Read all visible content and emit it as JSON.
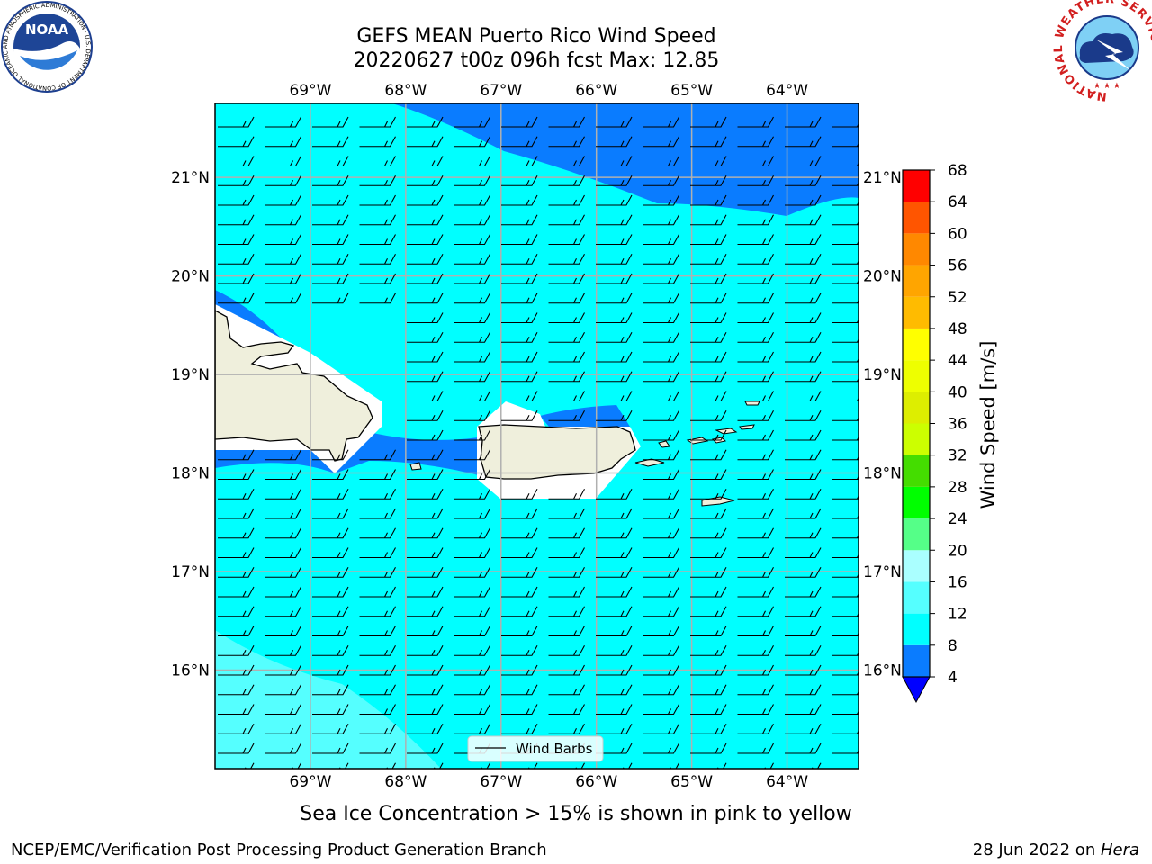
{
  "title": {
    "line1": "GEFS MEAN Puerto Rico Wind Speed",
    "line2": "20220627 t00z 096h fcst   Max: 12.85"
  },
  "logos": {
    "noaa_text": "NOAA",
    "noaa_ring_text": "NATIONAL OCEANIC AND ATMOSPHERIC ADMINISTRATION · U.S. DEPARTMENT OF COMMERCE",
    "nws_ring_text": "NATIONAL WEATHER SERVICE"
  },
  "map": {
    "lon_range": [
      -70.0,
      -63.25
    ],
    "lat_range": [
      15.0,
      21.75
    ],
    "lon_ticks": [
      {
        "value": -69,
        "label": "69°W"
      },
      {
        "value": -68,
        "label": "68°W"
      },
      {
        "value": -67,
        "label": "67°W"
      },
      {
        "value": -66,
        "label": "66°W"
      },
      {
        "value": -65,
        "label": "65°W"
      },
      {
        "value": -64,
        "label": "64°W"
      }
    ],
    "lat_ticks": [
      {
        "value": 21,
        "label": "21°N"
      },
      {
        "value": 20,
        "label": "20°N"
      },
      {
        "value": 19,
        "label": "19°N"
      },
      {
        "value": 18,
        "label": "18°N"
      },
      {
        "value": 17,
        "label": "17°N"
      },
      {
        "value": 16,
        "label": "16°N"
      }
    ],
    "grid": true,
    "ocean_color": "#00ffff",
    "high_wind_color": "#0a7cff",
    "light_wind_color": "#55ffff",
    "land_color": "#efefdc",
    "barb_wind_from_deg": 90,
    "barb_speed_ms": 9
  },
  "legend": {
    "label": "Wind Barbs",
    "placement": "bottom-center"
  },
  "colorbar": {
    "label": "Wind Speed [m/s]",
    "ticks": [
      "4",
      "8",
      "12",
      "16",
      "20",
      "24",
      "28",
      "32",
      "36",
      "40",
      "44",
      "48",
      "52",
      "56",
      "60",
      "64",
      "68"
    ],
    "under_color": "#0000ff",
    "bins": [
      {
        "from": 4,
        "to": 8,
        "color": "#0a7cff"
      },
      {
        "from": 8,
        "to": 12,
        "color": "#00ffff"
      },
      {
        "from": 12,
        "to": 16,
        "color": "#55ffff"
      },
      {
        "from": 16,
        "to": 20,
        "color": "#aaffff"
      },
      {
        "from": 20,
        "to": 24,
        "color": "#55ff88"
      },
      {
        "from": 24,
        "to": 28,
        "color": "#00ff00"
      },
      {
        "from": 28,
        "to": 32,
        "color": "#44dd00"
      },
      {
        "from": 32,
        "to": 36,
        "color": "#ccff00"
      },
      {
        "from": 36,
        "to": 40,
        "color": "#ddee00"
      },
      {
        "from": 40,
        "to": 44,
        "color": "#eeff00"
      },
      {
        "from": 44,
        "to": 48,
        "color": "#ffff00"
      },
      {
        "from": 48,
        "to": 52,
        "color": "#ffbb00"
      },
      {
        "from": 52,
        "to": 56,
        "color": "#ffa500"
      },
      {
        "from": 56,
        "to": 60,
        "color": "#ff8800"
      },
      {
        "from": 60,
        "to": 64,
        "color": "#ff5500"
      },
      {
        "from": 64,
        "to": 68,
        "color": "#ff0000"
      }
    ]
  },
  "note": "Sea Ice Concentration > 15% is shown in pink to yellow",
  "footer": {
    "left": "NCEP/EMC/Verification Post Processing Product Generation Branch",
    "date": "28 Jun 2022 on ",
    "machine": "Hera"
  }
}
